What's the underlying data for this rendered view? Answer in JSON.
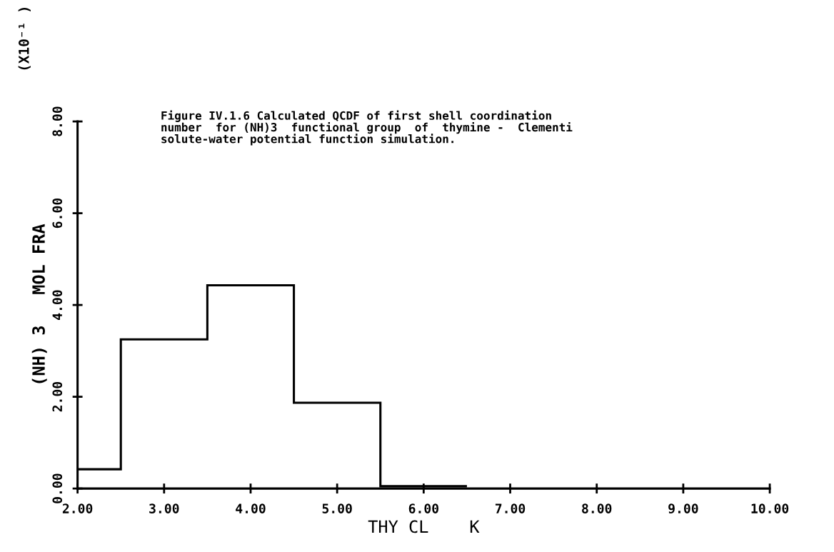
{
  "chart_data": {
    "type": "histogram",
    "title": "Figure IV.1.6 Calculated QCDF of first shell coordination\nnumber  for (NH)3  functional group  of  thymine -  Clementi\nsolute-water potential function simulation.",
    "xlabel": "THY CL    K",
    "ylabel": "(NH) 3   MOL FRA",
    "annotations": [
      "(X10⁻¹ )"
    ],
    "bins": [
      2.0,
      2.5,
      3.5,
      4.5,
      5.5,
      6.5
    ],
    "values": [
      0.42,
      3.25,
      4.43,
      1.87,
      0.05
    ],
    "color": "#000000",
    "xlim": [
      2,
      10
    ],
    "ylim": [
      0,
      8
    ],
    "xticks": [
      {
        "value": 2,
        "label": "2.00"
      },
      {
        "value": 3,
        "label": "3.00"
      },
      {
        "value": 4,
        "label": "4.00"
      },
      {
        "value": 5,
        "label": "5.00"
      },
      {
        "value": 6,
        "label": "6.00"
      },
      {
        "value": 7,
        "label": "7.00"
      },
      {
        "value": 8,
        "label": "8.00"
      },
      {
        "value": 9,
        "label": "9.00"
      },
      {
        "value": 10,
        "label": "10.00"
      }
    ],
    "yticks": [
      {
        "value": 0,
        "label": "0.00"
      },
      {
        "value": 2,
        "label": "2.00"
      },
      {
        "value": 4,
        "label": "4.00"
      },
      {
        "value": 6,
        "label": "6.00"
      },
      {
        "value": 8,
        "label": "8.00"
      }
    ],
    "grid": false
  }
}
